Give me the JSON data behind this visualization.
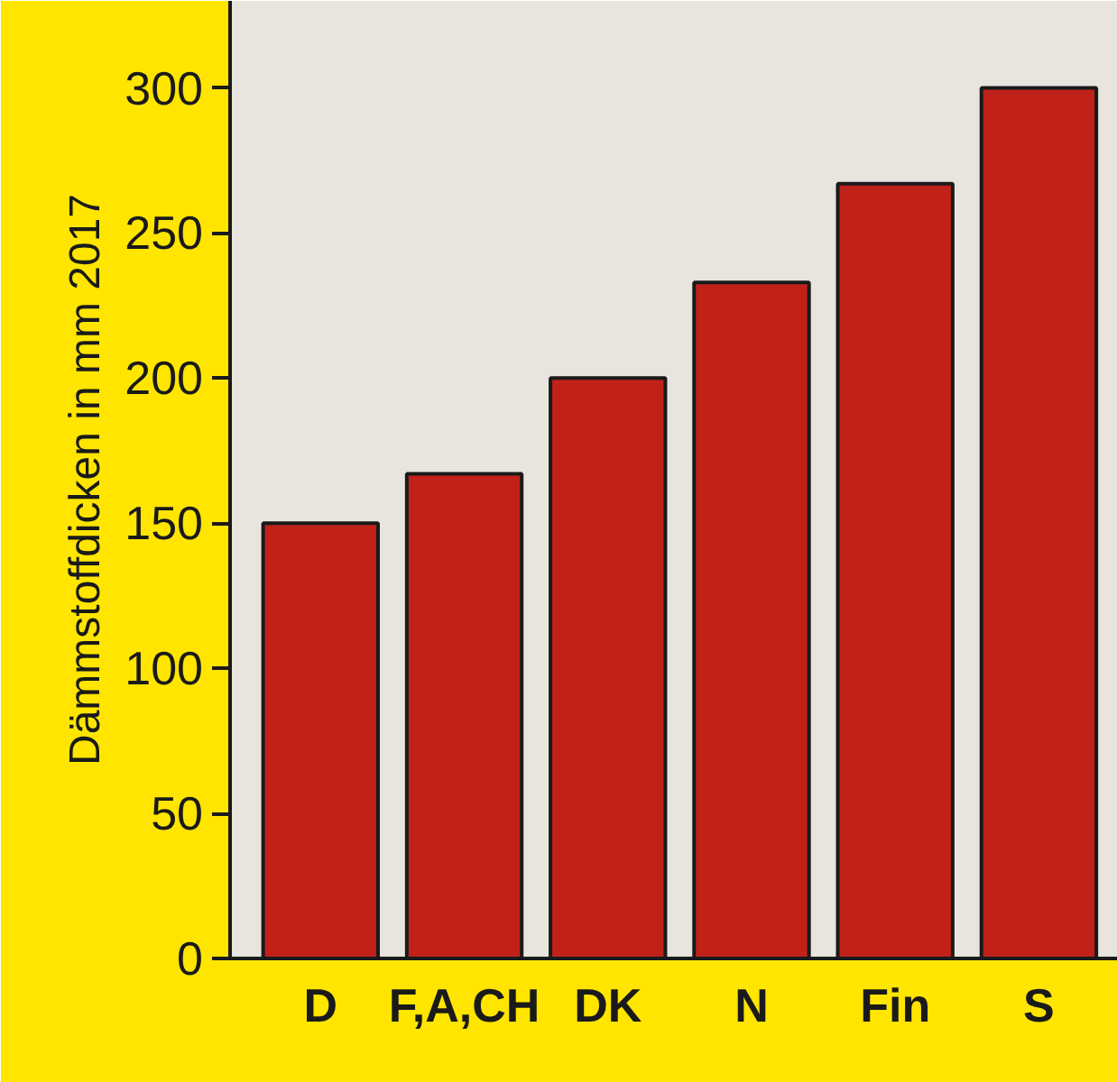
{
  "chart_data": {
    "type": "bar",
    "ylabel": "Dämmstoffdicken in mm 2017",
    "categories": [
      "D",
      "F,A,CH",
      "DK",
      "N",
      "Fin",
      "S"
    ],
    "values": [
      150,
      167,
      200,
      233,
      267,
      300
    ],
    "color": "#c0221a",
    "ylim": [
      0,
      330
    ],
    "yticks": [
      0,
      50,
      100,
      150,
      200,
      250,
      300
    ],
    "grid": false
  }
}
